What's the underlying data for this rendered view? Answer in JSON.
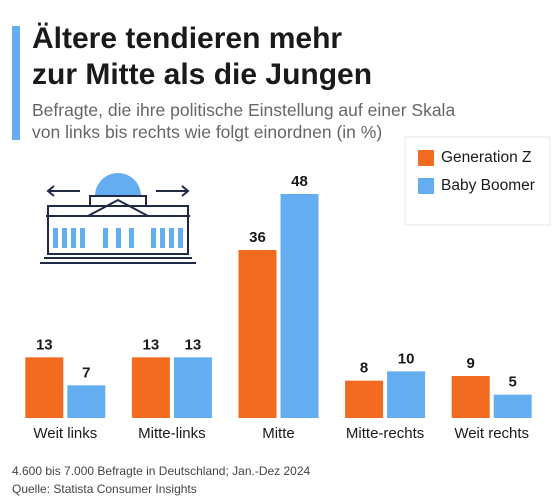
{
  "chart_data": {
    "type": "bar",
    "title": [
      "Ältere tendieren mehr",
      "zur Mitte als die Jungen"
    ],
    "subtitle": [
      "Befragte, die ihre politische Einstellung auf einer Skala",
      "von links bis rechts wie folgt einordnen (in %)"
    ],
    "categories": [
      "Weit links",
      "Mitte-links",
      "Mitte",
      "Mitte-rechts",
      "Weit rechts"
    ],
    "series": [
      {
        "name": "Generation Z",
        "color": "#f26b21",
        "values": [
          13,
          13,
          36,
          8,
          9
        ]
      },
      {
        "name": "Baby Boomer",
        "color": "#64adf0",
        "values": [
          7,
          13,
          48,
          10,
          5
        ]
      }
    ],
    "legend": "upper right",
    "notes": [
      "4.600 bis 7.000 Befragte in Deutschland; Jan.-Dez 2024",
      "Quelle: Statista Consumer Insights"
    ]
  }
}
